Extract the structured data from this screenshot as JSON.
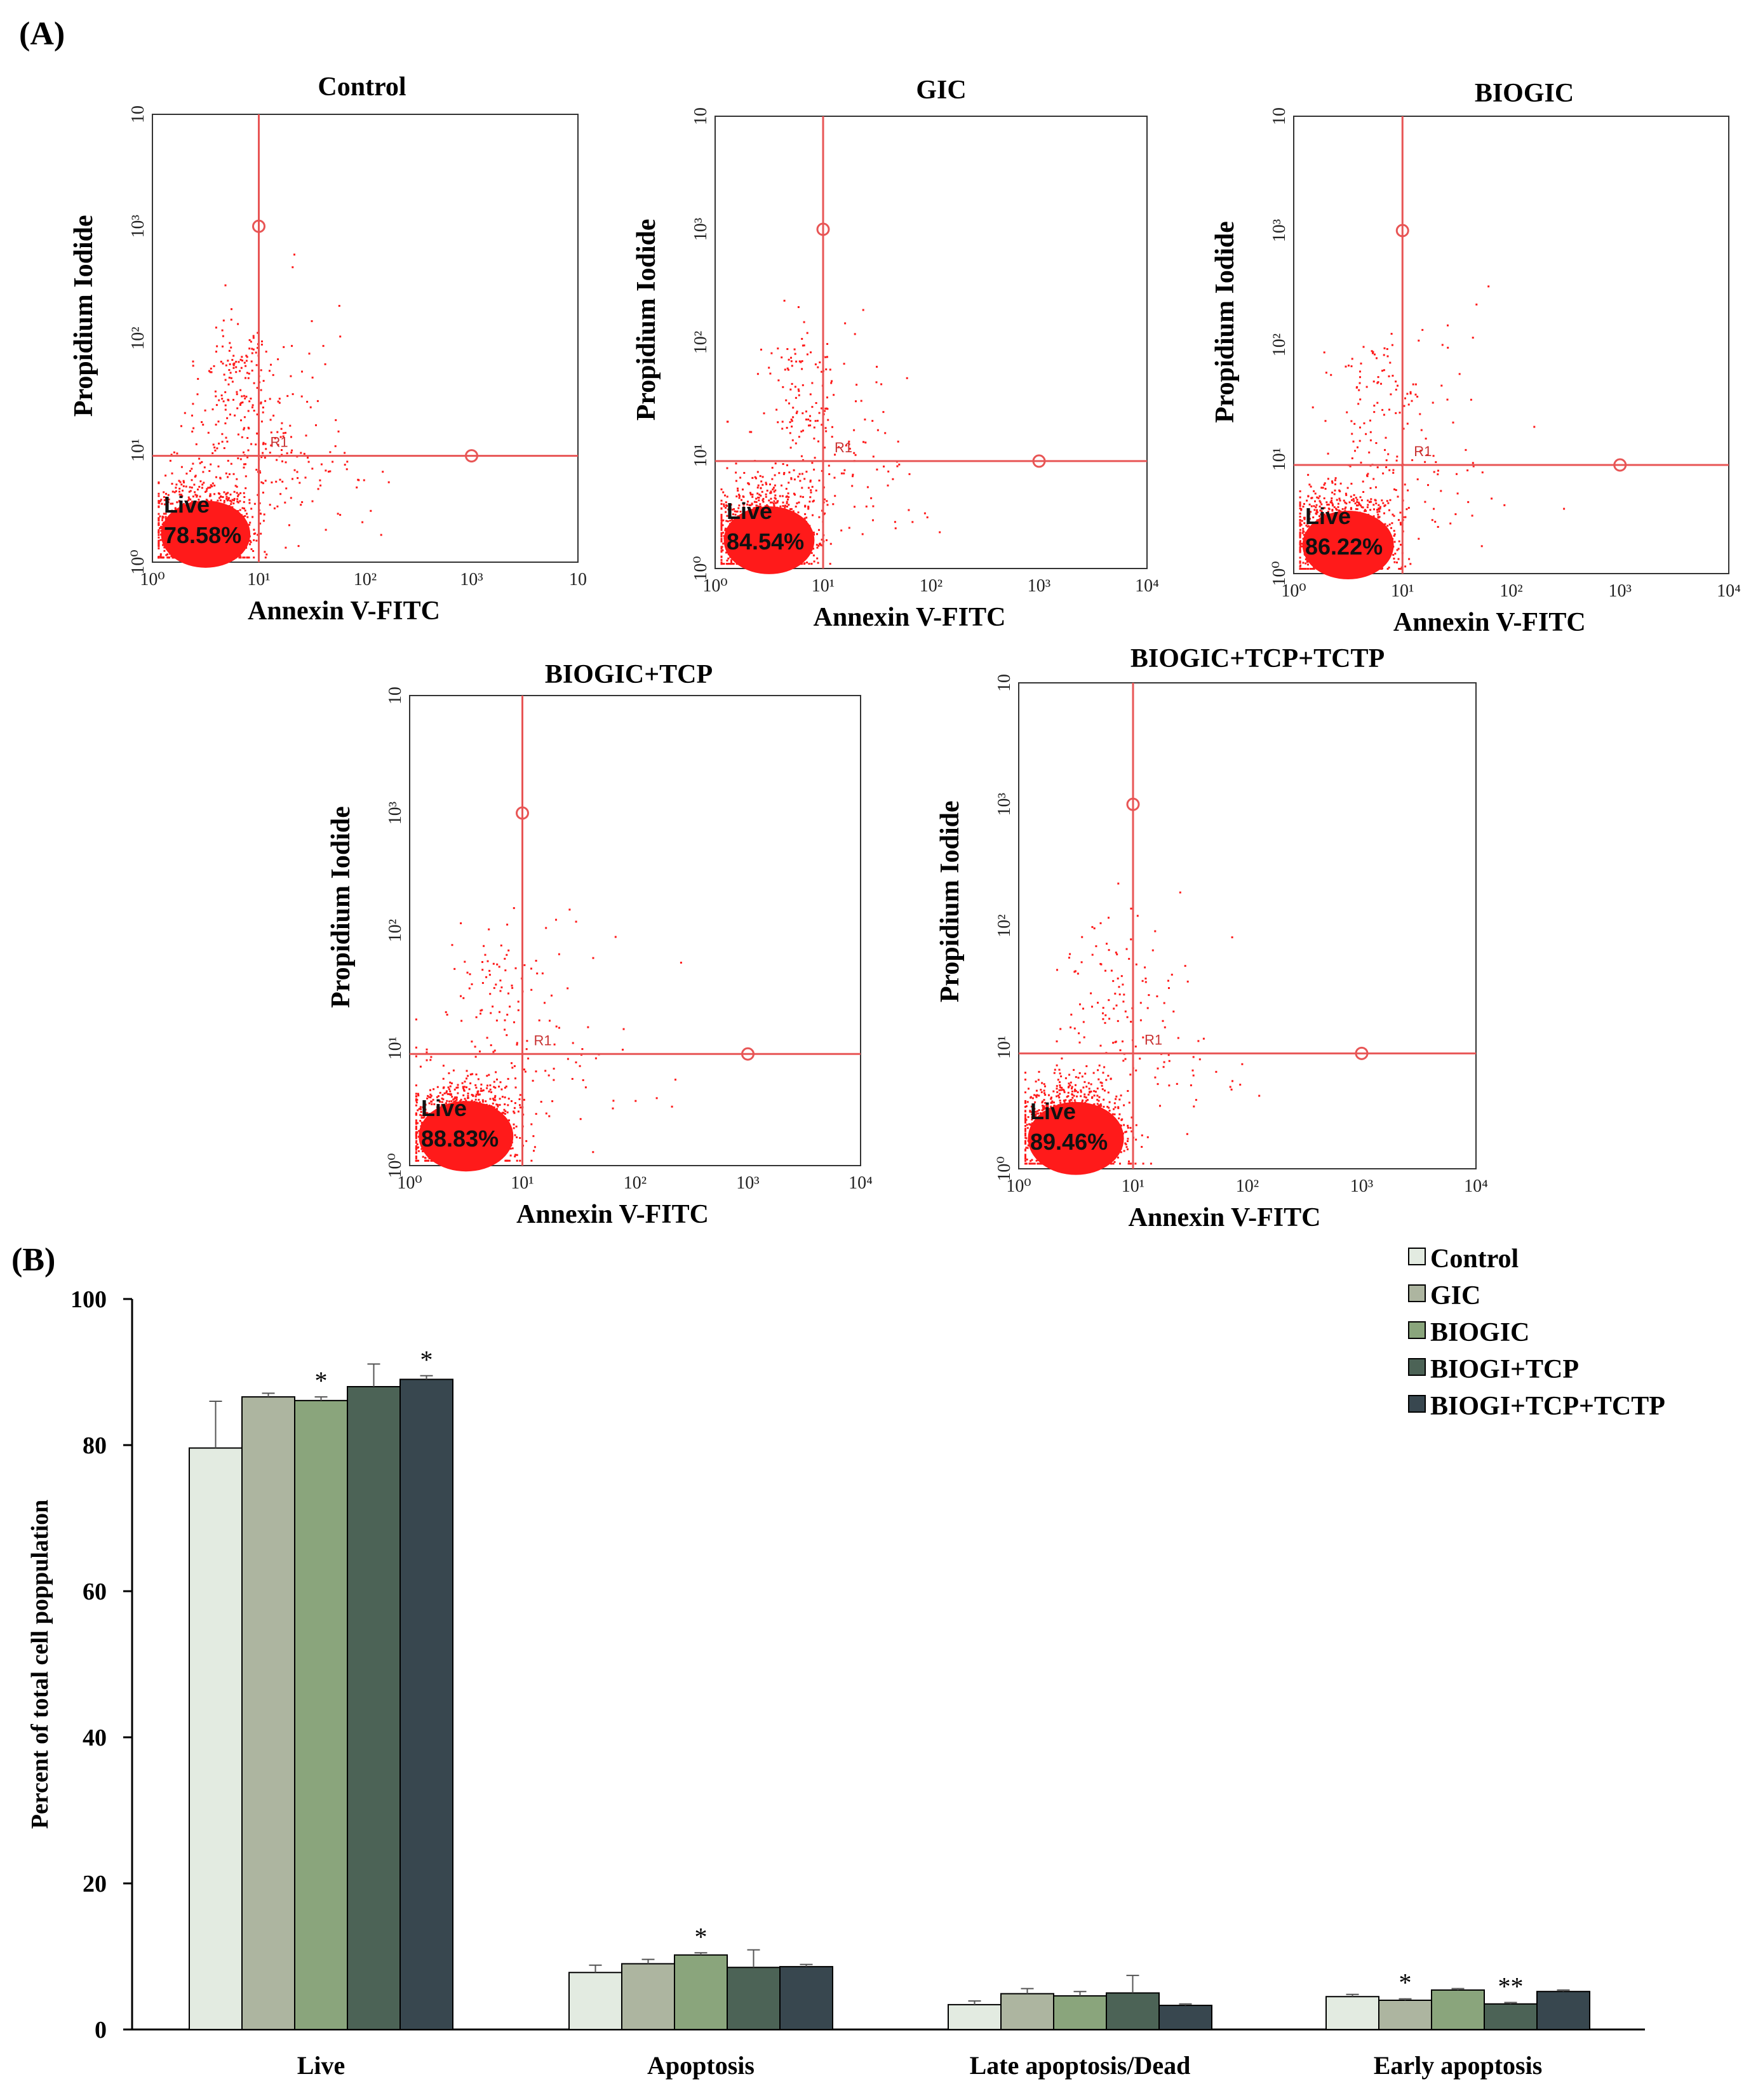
{
  "panel_a_label": "(A)",
  "panel_b_label": "(B)",
  "colors": {
    "dot": "#ff1a1a",
    "gate": "#e85555",
    "series": [
      "#e3ebe1",
      "#adb5a0",
      "#8aa57c",
      "#4c6356",
      "#38474f"
    ]
  },
  "flow_plots": [
    {
      "title": "Control",
      "live_label": "Live",
      "live_value": "78.58%",
      "x_label": "Annexin V-FITC",
      "y_label": "Propidium Iodide",
      "x_ticks": [
        "10⁰",
        "10¹",
        "10²",
        "10³",
        "10"
      ],
      "y_ticks": [
        "10⁰",
        "10¹",
        "10²",
        "10³",
        "10"
      ],
      "gate_label": "R1"
    },
    {
      "title": "GIC",
      "live_label": "Live",
      "live_value": "84.54%",
      "x_label": "Annexin V-FITC",
      "y_label": "Propidium Iodide",
      "x_ticks": [
        "10⁰",
        "10¹",
        "10²",
        "10³",
        "10⁴"
      ],
      "y_ticks": [
        "10⁰",
        "10¹",
        "10²",
        "10³",
        "10"
      ],
      "gate_label": "R1"
    },
    {
      "title": "BIOGIC",
      "live_label": "Live",
      "live_value": "86.22%",
      "x_label": "Annexin V-FITC",
      "y_label": "Propidium Iodide",
      "x_ticks": [
        "10⁰",
        "10¹",
        "10²",
        "10³",
        "10⁴"
      ],
      "y_ticks": [
        "10⁰",
        "10¹",
        "10²",
        "10³",
        "10"
      ],
      "gate_label": "R1"
    },
    {
      "title": "BIOGIC+TCP",
      "live_label": "Live",
      "live_value": "88.83%",
      "x_label": "Annexin V-FITC",
      "y_label": "Propidium Iodide",
      "x_ticks": [
        "10⁰",
        "10¹",
        "10²",
        "10³",
        "10⁴"
      ],
      "y_ticks": [
        "10⁰",
        "10¹",
        "10²",
        "10³",
        "10"
      ],
      "gate_label": "R1"
    },
    {
      "title": "BIOGIC+TCP+TCTP",
      "live_label": "Live",
      "live_value": "89.46%",
      "x_label": "Annexin V-FITC",
      "y_label": "Propidium Iodide",
      "x_ticks": [
        "10⁰",
        "10¹",
        "10²",
        "10³",
        "10⁴"
      ],
      "y_ticks": [
        "10⁰",
        "10¹",
        "10²",
        "10³",
        "10"
      ],
      "gate_label": "R1"
    }
  ],
  "chart_data": {
    "type": "bar",
    "title": "",
    "xlabel": "",
    "ylabel": "Percent of total cell poppulation",
    "ylim": [
      0,
      100
    ],
    "yticks": [
      0,
      20,
      40,
      60,
      80,
      100
    ],
    "legend_position": "top-right",
    "categories": [
      "Live",
      "Apoptosis",
      "Late apoptosis/Dead",
      "Early apoptosis"
    ],
    "series": [
      {
        "name": "Control",
        "values": [
          79.6,
          7.8,
          3.4,
          4.5
        ],
        "errors": [
          6.4,
          1.0,
          0.5,
          0.3
        ],
        "sig": [
          "",
          "",
          "",
          ""
        ]
      },
      {
        "name": "GIC",
        "values": [
          86.6,
          9.0,
          4.9,
          4.0
        ],
        "errors": [
          0.5,
          0.6,
          0.7,
          0.2
        ],
        "sig": [
          "",
          "",
          "",
          "*"
        ]
      },
      {
        "name": "BIOGIC",
        "values": [
          86.1,
          10.2,
          4.6,
          5.4
        ],
        "errors": [
          0.5,
          0.3,
          0.6,
          0.2
        ],
        "sig": [
          "*",
          "*",
          "",
          ""
        ]
      },
      {
        "name": "BIOGI+TCP",
        "values": [
          88.0,
          8.5,
          5.0,
          3.5
        ],
        "errors": [
          3.1,
          2.4,
          2.4,
          0.2
        ],
        "sig": [
          "",
          "",
          "",
          "**"
        ]
      },
      {
        "name": "BIOGI+TCP+TCTP",
        "values": [
          89.0,
          8.6,
          3.3,
          5.2
        ],
        "errors": [
          0.5,
          0.3,
          0.2,
          0.2
        ],
        "sig": [
          "*",
          "",
          "",
          ""
        ]
      }
    ]
  }
}
